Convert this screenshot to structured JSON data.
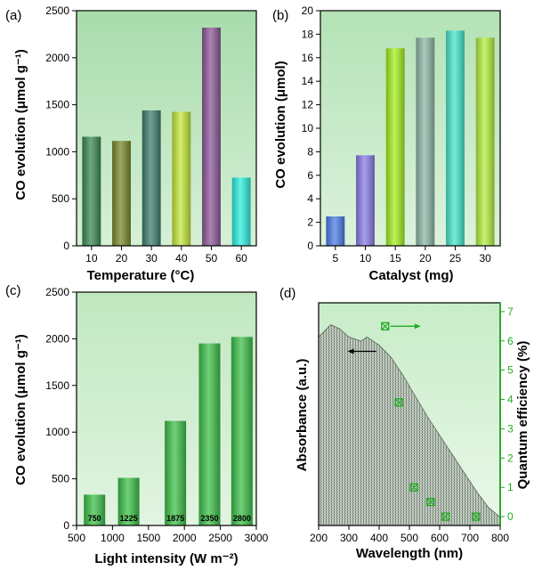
{
  "chart_data": [
    {
      "panel": "(a)",
      "type": "bar",
      "categories": [
        "10",
        "20",
        "30",
        "40",
        "50",
        "60"
      ],
      "values": [
        1160,
        1115,
        1440,
        1425,
        2320,
        725
      ],
      "xlabel": "Temperature (°C)",
      "ylabel": "CO evolution (μmol g⁻¹)",
      "ylim": [
        0,
        2500
      ],
      "yticks": [
        "0",
        "500",
        "1000",
        "1500",
        "2000",
        "2500"
      ],
      "colors": [
        "#3d8a55",
        "#7a8a2e",
        "#3f7f70",
        "#c6e83c",
        "#8e5a9a",
        "#2ff0e0"
      ],
      "background": "#b8e4ba"
    },
    {
      "panel": "(b)",
      "type": "bar",
      "categories": [
        "5",
        "10",
        "15",
        "20",
        "25",
        "30"
      ],
      "values": [
        2.5,
        7.7,
        16.8,
        17.7,
        18.3,
        17.7
      ],
      "xlabel": "Catalyst (mg)",
      "ylabel": "CO evolution (μmol)",
      "ylim": [
        0,
        20
      ],
      "yticks": [
        "0",
        "2",
        "4",
        "6",
        "8",
        "10",
        "12",
        "14",
        "16",
        "18",
        "20"
      ],
      "colors": [
        "#4c7ee8",
        "#8a7ee6",
        "#a6f020",
        "#8fb8a8",
        "#46e8cc",
        "#b6f040"
      ],
      "background": "#c2e8c4"
    },
    {
      "panel": "(c)",
      "type": "bar",
      "x": [
        750,
        1225,
        1875,
        2350,
        2800
      ],
      "values": [
        330,
        510,
        1120,
        1950,
        2020
      ],
      "data_labels": [
        "750",
        "1225",
        "1875",
        "2350",
        "2800"
      ],
      "xlabel": "Light intensity (W m⁻²)",
      "ylabel": "CO evolution (μmol g⁻¹)",
      "xlim": [
        500,
        3000
      ],
      "xticks": [
        "500",
        "1000",
        "1500",
        "2000",
        "2500",
        "3000"
      ],
      "ylim": [
        0,
        2500
      ],
      "yticks": [
        "0",
        "500",
        "1000",
        "1500",
        "2000",
        "2500"
      ],
      "colors": [
        "#3fc24a"
      ],
      "background": "#c8ecc8"
    },
    {
      "panel": "(d)",
      "type": "area",
      "xlabel": "Wavelength (nm)",
      "ylabel": "Absorbance (a.u.)",
      "xlim": [
        200,
        800
      ],
      "xticks": [
        "200",
        "300",
        "400",
        "500",
        "600",
        "700",
        "800"
      ],
      "series": [
        {
          "axis": "left",
          "x": [
            200,
            240,
            270,
            300,
            340,
            360,
            400,
            440,
            480,
            520,
            560,
            600,
            640,
            680,
            720,
            760,
            800
          ],
          "y": [
            0.92,
            0.98,
            0.96,
            0.92,
            0.9,
            0.92,
            0.88,
            0.82,
            0.73,
            0.63,
            0.53,
            0.44,
            0.35,
            0.26,
            0.17,
            0.09,
            0.04
          ]
        },
        {
          "axis": "right",
          "x": [
            420,
            465,
            515,
            570,
            620,
            720
          ],
          "y": [
            6.5,
            3.9,
            1.0,
            0.5,
            0.0,
            0.0
          ]
        }
      ],
      "y2label": "Quantum efficiency (%)",
      "y2lim": [
        -0.3,
        7.3
      ],
      "y2ticks": [
        "0",
        "1",
        "2",
        "3",
        "4",
        "5",
        "6",
        "7"
      ],
      "y2color": "#22aa22",
      "background": "#c8ecc8"
    }
  ]
}
